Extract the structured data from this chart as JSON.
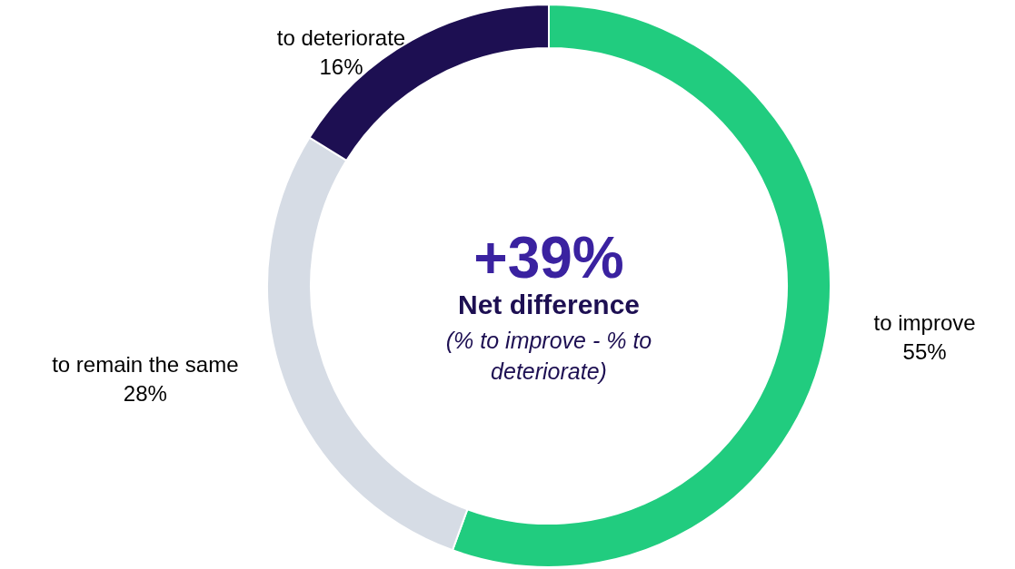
{
  "chart_data": {
    "type": "donut",
    "categories": [
      "to improve",
      "to remain the same",
      "to deteriorate"
    ],
    "values": [
      55,
      28,
      16
    ],
    "colors": [
      "#21cc7f",
      "#d6dce5",
      "#1d0f52"
    ],
    "value_labels": [
      "55%",
      "28%",
      "16%"
    ],
    "annotations": [
      "+39%",
      "Net difference",
      "(% to improve - % to deteriorate)"
    ]
  }
}
